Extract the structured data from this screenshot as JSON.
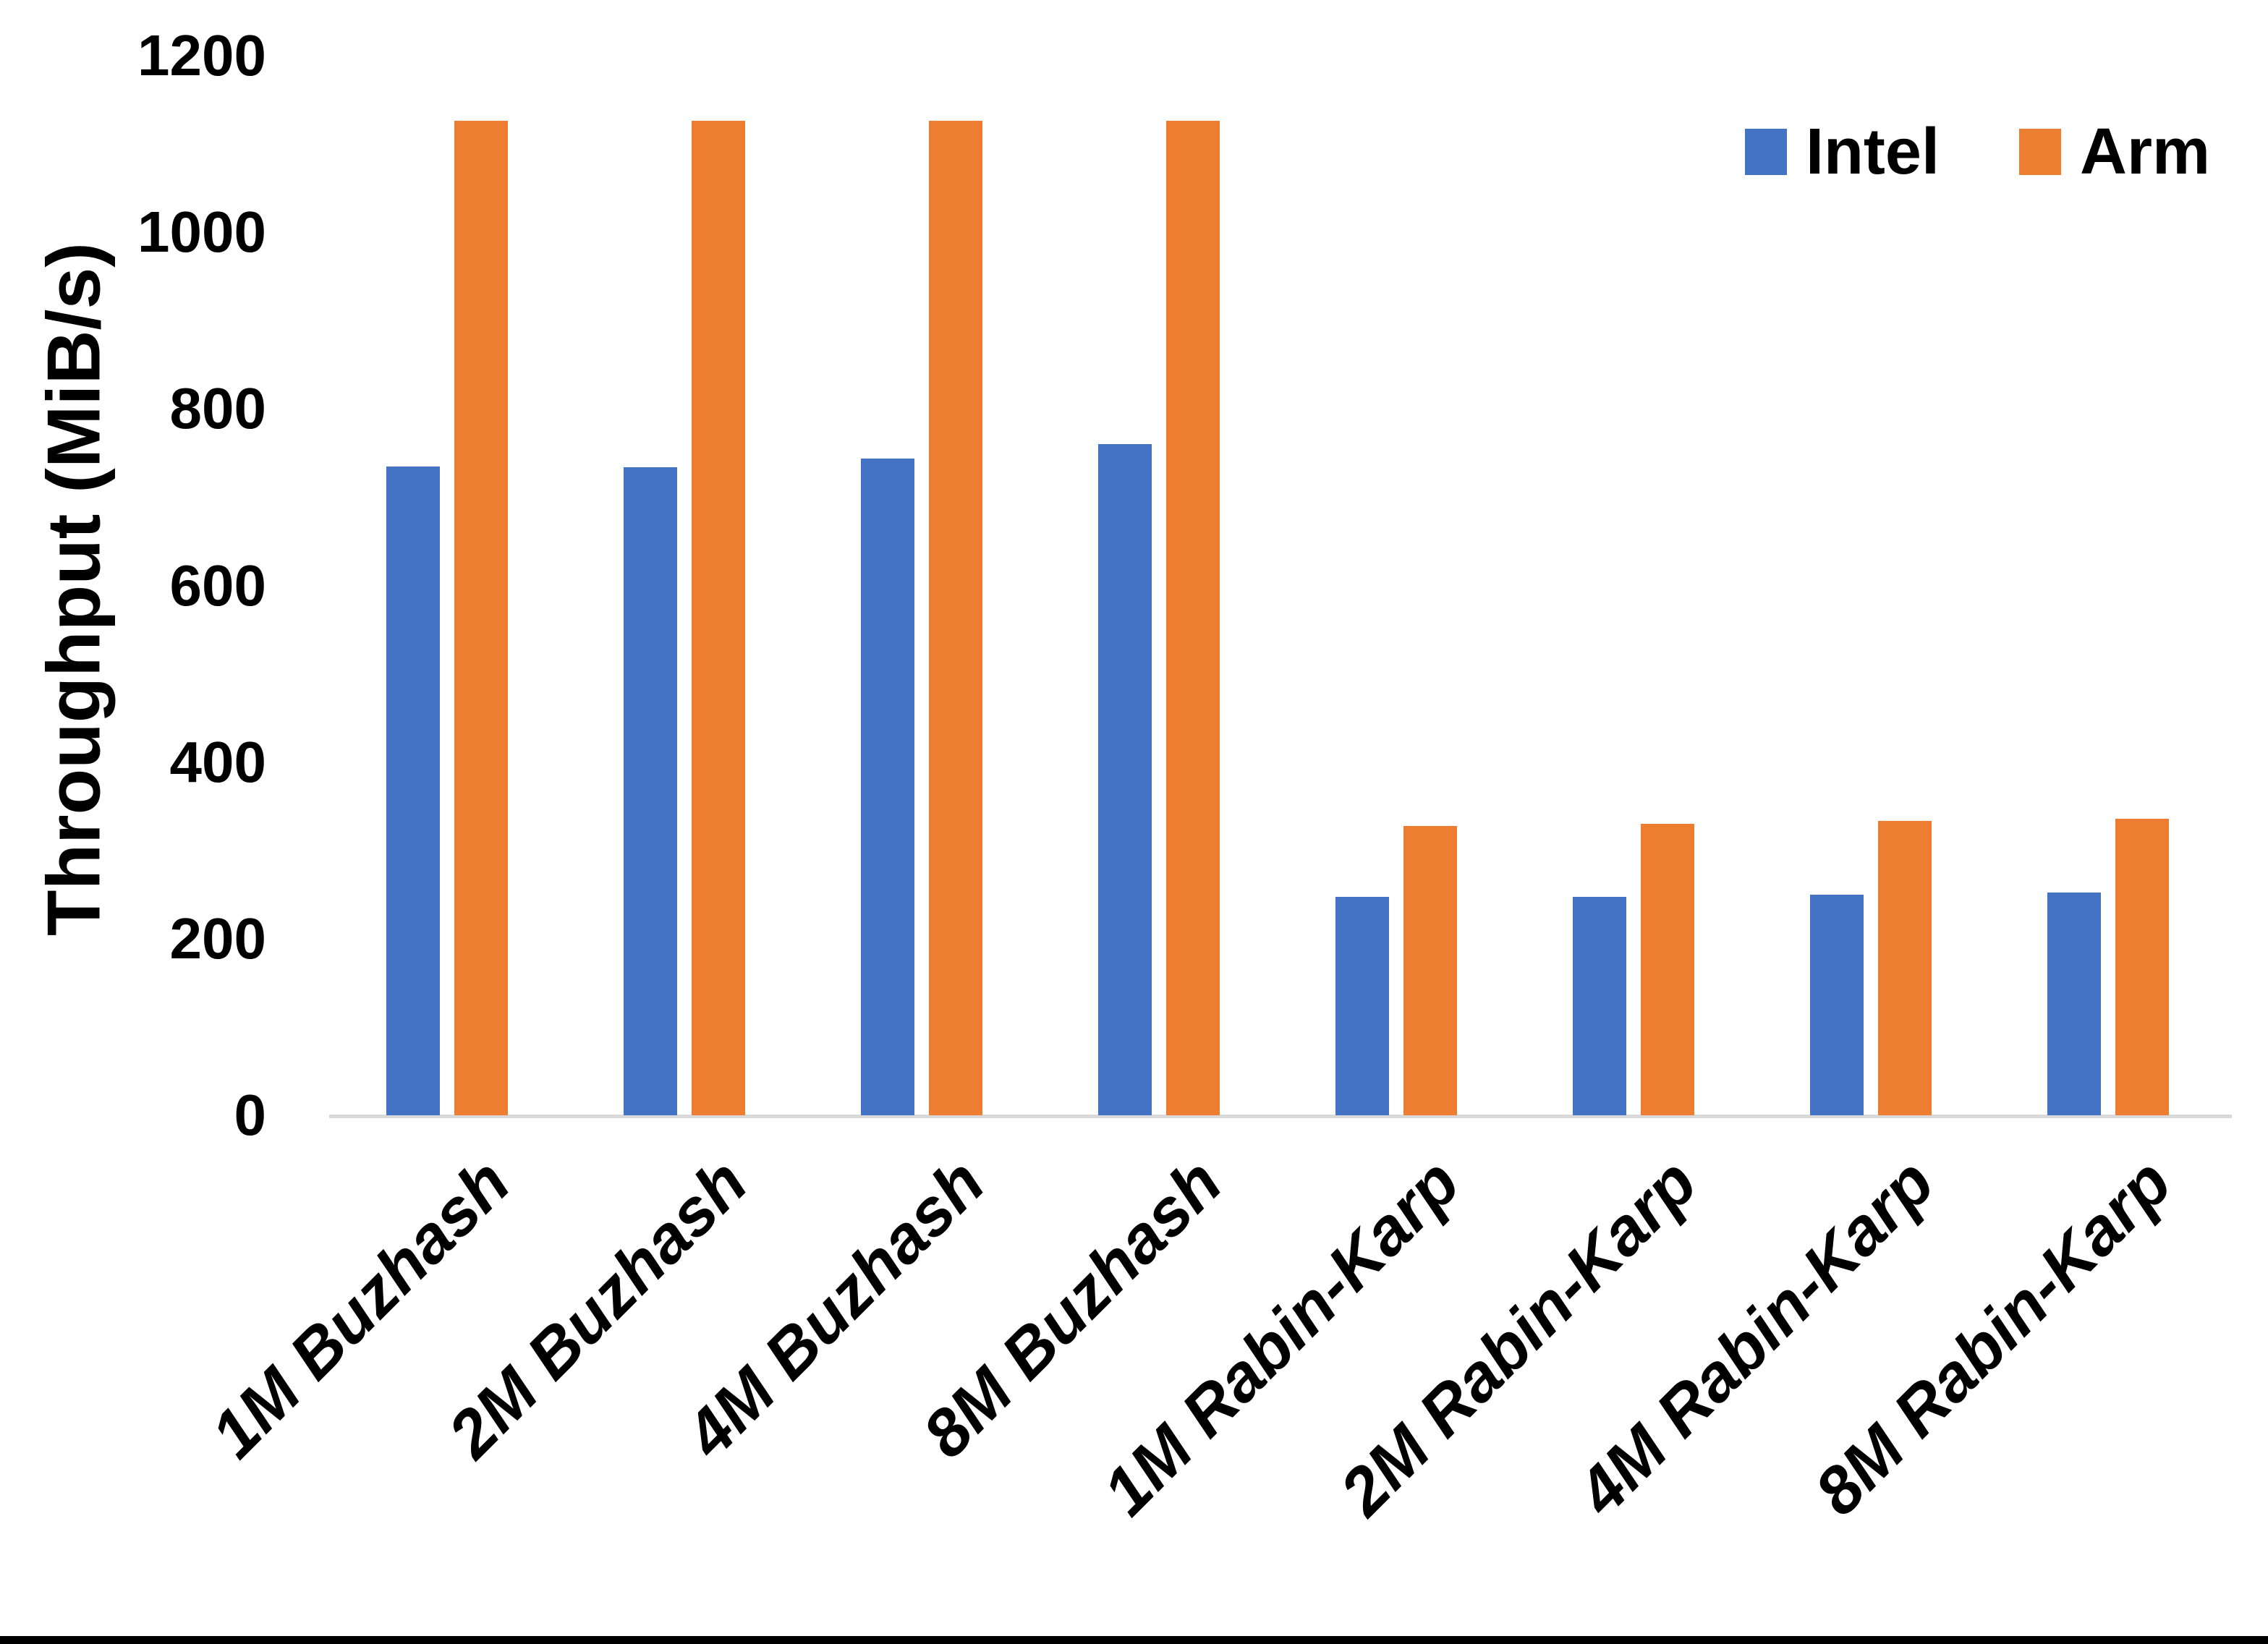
{
  "chart_data": {
    "type": "bar",
    "title": "",
    "xlabel": "",
    "ylabel": "Throughput (MiB/s)",
    "ylim": [
      0,
      1200
    ],
    "yticks": [
      0,
      200,
      400,
      600,
      800,
      1000,
      1200
    ],
    "grid": false,
    "legend_position": "top-right",
    "axis_line_color": "#d9d9d9",
    "text_color": "#000000",
    "categories": [
      "1M Buzhash",
      "2M Buzhash",
      "4M Buzhash",
      "8M Buzhash",
      "1M Rabin-Karp",
      "2M Rabin-Karp",
      "4M Rabin-Karp",
      "8M Rabin-Karp"
    ],
    "series": [
      {
        "name": "Intel",
        "color": "#4472c4",
        "values": [
          735,
          734,
          744,
          760,
          247,
          247,
          250,
          252
        ]
      },
      {
        "name": "Arm",
        "color": "#ed7d31",
        "values": [
          1126,
          1126,
          1126,
          1126,
          328,
          330,
          333,
          336
        ]
      }
    ]
  }
}
